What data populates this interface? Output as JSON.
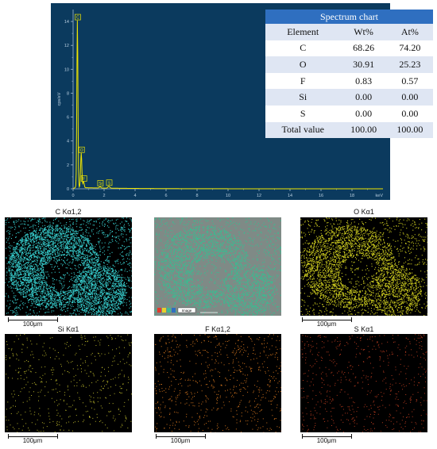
{
  "chart_data": {
    "type": "line",
    "title": "",
    "xlabel": "keV",
    "ylabel": "cps/eV",
    "xlim": [
      0,
      20
    ],
    "ylim": [
      0,
      15
    ],
    "xticks": [
      0,
      2,
      4,
      6,
      8,
      10,
      12,
      14,
      16,
      18
    ],
    "xtick_labels": [
      "0",
      "2",
      "4",
      "6",
      "8",
      "10",
      "12",
      "14",
      "16",
      "18"
    ],
    "yticks": [
      0,
      2,
      4,
      6,
      8,
      10,
      12,
      14
    ],
    "ytick_labels": [
      "0",
      "2",
      "4",
      "6",
      "8",
      "10",
      "12",
      "14"
    ],
    "line_color": "#f0e500",
    "background_color": "#0b3a5e",
    "peaks": [
      {
        "element": "C",
        "energy": 0.277,
        "height": 14.0
      },
      {
        "element": "O",
        "energy": 0.525,
        "height": 2.9
      },
      {
        "element": "F",
        "energy": 0.677,
        "height": 0.5
      },
      {
        "element": "Si",
        "energy": 1.74,
        "height": 0.1
      },
      {
        "element": "S",
        "energy": 2.307,
        "height": 0.15
      }
    ],
    "peak_labels": [
      "C",
      "O",
      "F",
      "Si",
      "S"
    ]
  },
  "table": {
    "caption": "Spectrum chart",
    "headers": [
      "Element",
      "Wt%",
      "At%"
    ],
    "rows": [
      [
        "C",
        "68.26",
        "74.20"
      ],
      [
        "O",
        "30.91",
        "25.23"
      ],
      [
        "F",
        "0.83",
        "0.57"
      ],
      [
        "Si",
        "0.00",
        "0.00"
      ],
      [
        "S",
        "0.00",
        "0.00"
      ],
      [
        "Total value",
        "100.00",
        "100.00"
      ]
    ]
  },
  "maps": [
    {
      "label": "C Kα1,2",
      "scale": "100μm",
      "color": "#35c9c9"
    },
    {
      "label": "",
      "scale": "100μm",
      "color": "#3fb890",
      "legend_box_label": "Image"
    },
    {
      "label": "O Kα1",
      "scale": "100μm",
      "color": "#c9c81f"
    },
    {
      "label": "Si Kα1",
      "scale": "100μm",
      "color": "#b7b32a"
    },
    {
      "label": "F Kα1,2",
      "scale": "100μm",
      "color": "#d0731d"
    },
    {
      "label": "S Kα1",
      "scale": "100μm",
      "color": "#b43a1e"
    }
  ]
}
